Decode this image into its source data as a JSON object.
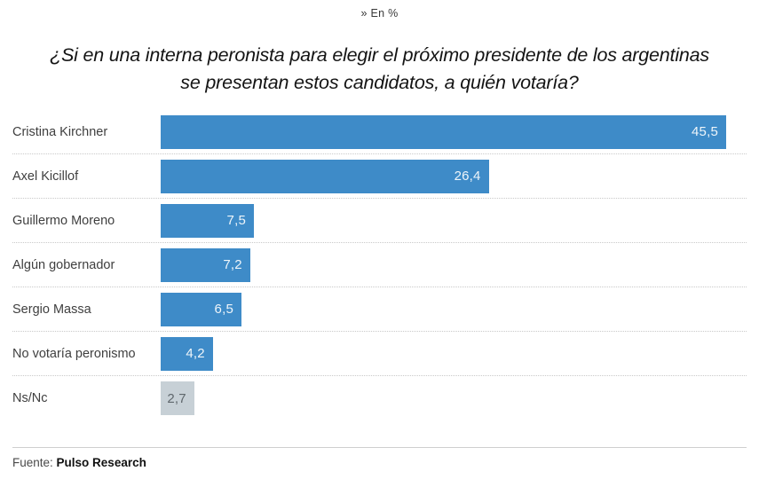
{
  "kicker": "» En %",
  "title_line1": "¿Si en una interna peronista para elegir el próximo presidente de los argentinas",
  "title_line2": "se presentan estos candidatos, a quién votaría?",
  "footer": {
    "source_label": "Fuente:",
    "source_name": "Pulso Research"
  },
  "colors": {
    "bar_blue": "#3e8bc8",
    "bar_grey": "#c7d0d6",
    "value_text_light": "#eef5fa",
    "value_text_dark": "#5f676c"
  },
  "chart_data": {
    "type": "bar",
    "orientation": "horizontal",
    "unit": "%",
    "title": "¿Si en una interna peronista para elegir el próximo presidente de los argentinas se presentan estos candidatos, a quién votaría?",
    "categories": [
      "Cristina Kirchner",
      "Axel Kicillof",
      "Guillermo Moreno",
      "Algún gobernador",
      "Sergio Massa",
      "No votaría peronismo",
      "Ns/Nc"
    ],
    "values": [
      45.5,
      26.4,
      7.5,
      7.2,
      6.5,
      4.2,
      2.7
    ],
    "xlim": [
      0,
      47
    ],
    "grid": false,
    "legend": "none",
    "source": "Pulso Research",
    "rows": [
      {
        "label": "Cristina Kirchner",
        "value": 45.5,
        "value_label": "45,5",
        "color": "blue"
      },
      {
        "label": "Axel Kicillof",
        "value": 26.4,
        "value_label": "26,4",
        "color": "blue"
      },
      {
        "label": "Guillermo Moreno",
        "value": 7.5,
        "value_label": "7,5",
        "color": "blue"
      },
      {
        "label": "Algún gobernador",
        "value": 7.2,
        "value_label": "7,2",
        "color": "blue"
      },
      {
        "label": "Sergio Massa",
        "value": 6.5,
        "value_label": "6,5",
        "color": "blue"
      },
      {
        "label": "No votaría peronismo",
        "value": 4.2,
        "value_label": "4,2",
        "color": "blue"
      },
      {
        "label": "Ns/Nc",
        "value": 2.7,
        "value_label": "2,7",
        "color": "grey"
      }
    ]
  }
}
